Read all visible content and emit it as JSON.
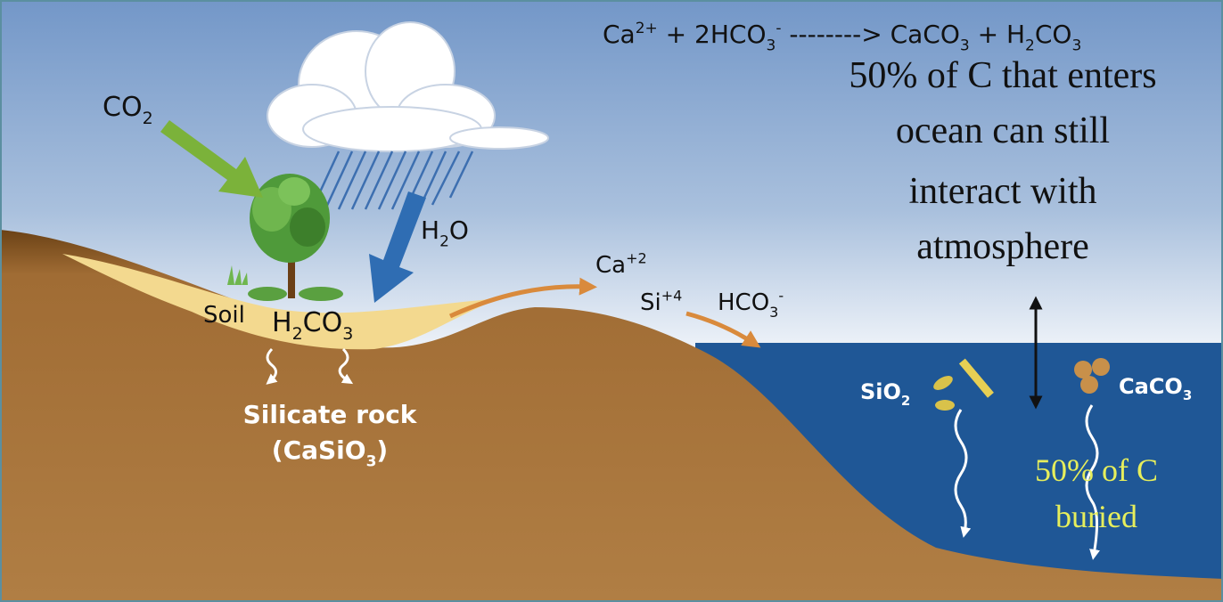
{
  "equation": [
    {
      "text": "Ca",
      "sup": "2+"
    },
    {
      "text": " + 2HCO",
      "sub": "3",
      "sup": "-"
    },
    {
      "text": "  --------> CaCO",
      "sub": "3"
    },
    {
      "text": " + H",
      "sub": "2"
    },
    {
      "text": "CO",
      "sub": "3"
    }
  ],
  "atmosphere_note": [
    "50% of C that enters",
    "ocean can still",
    "interact with",
    "atmosphere"
  ],
  "burial_note": [
    "50% of C",
    "buried"
  ],
  "labels": {
    "co2": [
      {
        "text": "CO",
        "sub": "2"
      }
    ],
    "h2o": [
      {
        "text": "H",
        "sub": "2"
      },
      {
        "text": "O"
      }
    ],
    "soil": [
      {
        "text": "Soil"
      }
    ],
    "h2co3": [
      {
        "text": "H",
        "sub": "2"
      },
      {
        "text": "CO",
        "sub": "3"
      }
    ],
    "silicate_rock": [
      {
        "text": "Silicate rock"
      }
    ],
    "casio3": [
      {
        "text": "(CaSiO",
        "sub": "3"
      },
      {
        "text": ")"
      }
    ],
    "ca": [
      {
        "text": "Ca",
        "sup": "+2"
      }
    ],
    "si": [
      {
        "text": "Si",
        "sup": "+4"
      }
    ],
    "hco3": [
      {
        "text": "HCO",
        "sub": "3",
        "sup": "-"
      }
    ],
    "sio2": [
      {
        "text": "SiO",
        "sub": "2"
      }
    ],
    "caco3": [
      {
        "text": "CaCO",
        "sub": "3"
      }
    ]
  }
}
